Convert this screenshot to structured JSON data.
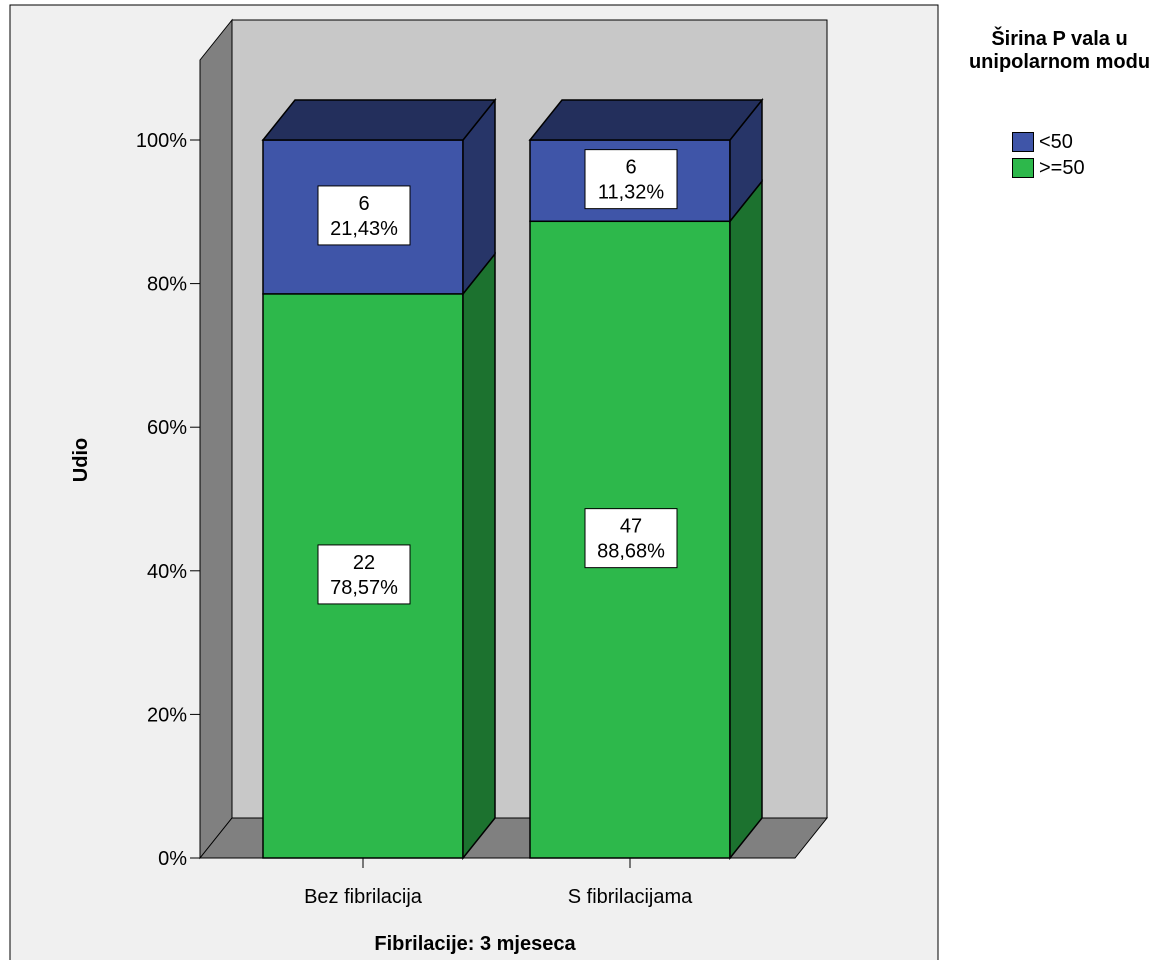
{
  "chart_data": {
    "type": "bar",
    "stacked": true,
    "three_d": true,
    "xlabel": "Fibrilacije: 3 mjeseca",
    "ylabel": "Udio",
    "ylim": [
      0,
      100
    ],
    "yticks": [
      "0%",
      "20%",
      "40%",
      "60%",
      "80%",
      "100%"
    ],
    "categories": [
      "Bez fibrilacija",
      "S fibrilacijama"
    ],
    "series": [
      {
        "name": ">=50",
        "color": "#2db84b",
        "counts": [
          "22",
          "47"
        ],
        "percents": [
          "78,57%",
          "88,68%"
        ],
        "values": [
          78.57,
          88.68
        ]
      },
      {
        "name": "<50",
        "color": "#3f55a8",
        "counts": [
          "6",
          "6"
        ],
        "percents": [
          "21,43%",
          "11,32%"
        ],
        "values": [
          21.43,
          11.32
        ]
      }
    ],
    "legend": {
      "title": "Širina P vala u unipolarnom modu",
      "position": "top-right",
      "order": [
        "<50",
        ">=50"
      ]
    },
    "grid": false
  }
}
